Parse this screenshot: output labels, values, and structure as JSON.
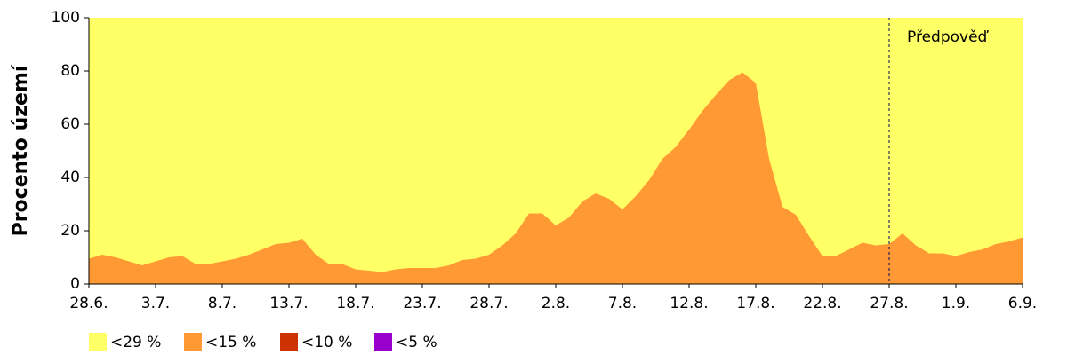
{
  "chart_data": {
    "type": "area",
    "y_label": "Procento území",
    "categories": [
      "28.6.",
      null,
      null,
      null,
      null,
      "3.7.",
      null,
      null,
      null,
      null,
      "8.7.",
      null,
      null,
      null,
      null,
      "13.7.",
      null,
      null,
      null,
      null,
      "18.7.",
      null,
      null,
      null,
      null,
      "23.7.",
      null,
      null,
      null,
      null,
      "28.7.",
      null,
      null,
      null,
      null,
      "2.8.",
      null,
      null,
      null,
      null,
      "7.8.",
      null,
      null,
      null,
      null,
      "12.8.",
      null,
      null,
      null,
      null,
      "17.8.",
      null,
      null,
      null,
      null,
      "22.8.",
      null,
      null,
      null,
      null,
      "27.8.",
      null,
      null,
      null,
      null,
      "1.9.",
      null,
      null,
      null,
      null,
      "6.9."
    ],
    "series": [
      {
        "name": "<29 %",
        "color": "#ffff66",
        "values": [
          100,
          100,
          100,
          100,
          100,
          100,
          100,
          100,
          100,
          100,
          100,
          100,
          100,
          100,
          100,
          100,
          100,
          100,
          100,
          100,
          100,
          100,
          100,
          100,
          100,
          100,
          100,
          100,
          100,
          100,
          100,
          100,
          100,
          100,
          100,
          100,
          100,
          100,
          100,
          100,
          100,
          100,
          100,
          100,
          100,
          100,
          100,
          100,
          100,
          100,
          100,
          100,
          100,
          100,
          100,
          100,
          100,
          100,
          100,
          100,
          100,
          100,
          100,
          100,
          100,
          100,
          100,
          100,
          100,
          100,
          100
        ]
      },
      {
        "name": "<15 %",
        "color": "#ff9933",
        "values": [
          9.5,
          11,
          10,
          8.5,
          7,
          8.5,
          10,
          10.5,
          7.5,
          7.5,
          8.5,
          9.5,
          11,
          13,
          15,
          15.5,
          17,
          11,
          7.5,
          7.5,
          5.5,
          5,
          4.5,
          5.5,
          6,
          6,
          6,
          7,
          9,
          9.5,
          11,
          14.5,
          19,
          26.5,
          26.5,
          22,
          25,
          31,
          34,
          32,
          28,
          33,
          39,
          47,
          51.5,
          58,
          65,
          71,
          76.5,
          79.5,
          75.5,
          47,
          29,
          26,
          18,
          10.5,
          10.5,
          13,
          15.5,
          14.5,
          15,
          19,
          14.5,
          11.5,
          11.5,
          10.5,
          12,
          13,
          15,
          16,
          17.5
        ]
      },
      {
        "name": "<10 %",
        "color": "#cc3300",
        "values": [
          0,
          0,
          0,
          0,
          0,
          0,
          0,
          0,
          0,
          0,
          0,
          0,
          0,
          0,
          0,
          0,
          0,
          0,
          0,
          0,
          0,
          0,
          0,
          0,
          0,
          0,
          0,
          0,
          0,
          0,
          0,
          0,
          0,
          0,
          0,
          0,
          0,
          0,
          0,
          0,
          0,
          0,
          0,
          0,
          0,
          0,
          0,
          0,
          0,
          0,
          0,
          0,
          0,
          0,
          0,
          0,
          0,
          0,
          0,
          0,
          0,
          0,
          0,
          0,
          0,
          0,
          0,
          0,
          0,
          0,
          0
        ]
      },
      {
        "name": "<5 %",
        "color": "#9900cc",
        "values": [
          0,
          0,
          0,
          0,
          0,
          0,
          0,
          0,
          0,
          0,
          0,
          0,
          0,
          0,
          0,
          0,
          0,
          0,
          0,
          0,
          0,
          0,
          0,
          0,
          0,
          0,
          0,
          0,
          0,
          0,
          0,
          0,
          0,
          0,
          0,
          0,
          0,
          0,
          0,
          0,
          0,
          0,
          0,
          0,
          0,
          0,
          0,
          0,
          0,
          0,
          0,
          0,
          0,
          0,
          0,
          0,
          0,
          0,
          0,
          0,
          0,
          0,
          0,
          0,
          0,
          0,
          0,
          0,
          0,
          0,
          0
        ]
      }
    ],
    "ylim": [
      0,
      100
    ],
    "yticks": [
      0,
      20,
      40,
      60,
      80,
      100
    ],
    "annotations": [
      {
        "text": "Předpověď",
        "x": "27.8."
      }
    ]
  }
}
